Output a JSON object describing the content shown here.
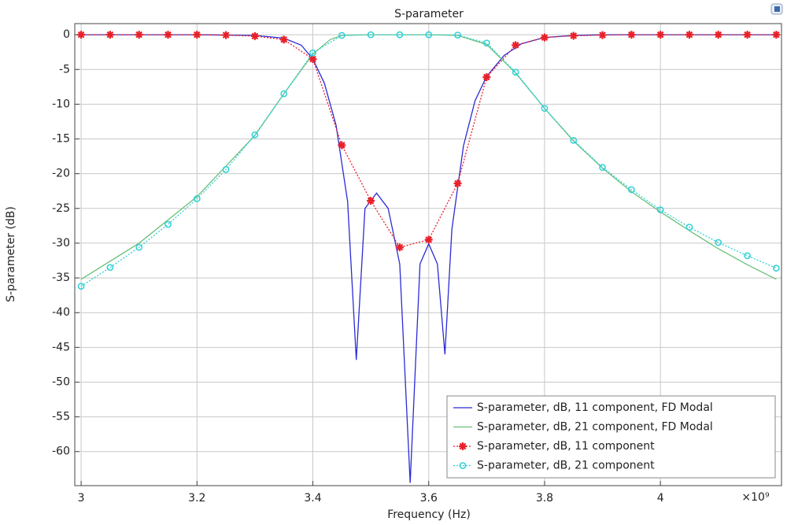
{
  "chart_data": {
    "type": "line",
    "title": "S-parameter",
    "x_label": "Frequency (Hz)",
    "y_label": "S-parameter (dB)",
    "x_multiplier": "×10⁹",
    "xlim": [
      2.989,
      4.209
    ],
    "ylim": [
      -64.9,
      1.6
    ],
    "xticks": [
      3,
      3.2,
      3.4,
      3.6,
      3.8,
      4
    ],
    "yticks": [
      0,
      -5,
      -10,
      -15,
      -20,
      -25,
      -30,
      -35,
      -40,
      -45,
      -50,
      -55,
      -60
    ],
    "grid": true,
    "legend": "lower right",
    "series": [
      {
        "name": "S-parameter, dB, 11 component, FD Modal",
        "color": "#2b2bd6",
        "line_style": "solid",
        "x": [
          3,
          3.1,
          3.2,
          3.3,
          3.35,
          3.38,
          3.4,
          3.42,
          3.44,
          3.46,
          3.475,
          3.49,
          3.51,
          3.53,
          3.55,
          3.568,
          3.585,
          3.6,
          3.615,
          3.628,
          3.64,
          3.66,
          3.68,
          3.7,
          3.73,
          3.76,
          3.8,
          3.85,
          3.9,
          4.2
        ],
        "values": [
          0,
          0,
          0,
          -0.1,
          -0.5,
          -1.5,
          -3.5,
          -7,
          -13,
          -24,
          -46.8,
          -25,
          -22.8,
          -25,
          -33,
          -64.5,
          -33,
          -30.1,
          -33,
          -46,
          -28,
          -16,
          -9.5,
          -6,
          -3,
          -1.3,
          -0.4,
          -0.1,
          0,
          0
        ]
      },
      {
        "name": "S-parameter, dB, 21 component, FD Modal",
        "color": "#6cc07a",
        "line_style": "solid",
        "x": [
          3,
          3.1,
          3.2,
          3.3,
          3.35,
          3.4,
          3.43,
          3.45,
          3.5,
          3.6,
          3.65,
          3.7,
          3.75,
          3.8,
          3.85,
          3.9,
          3.95,
          4.0,
          4.05,
          4.1,
          4.15,
          4.2
        ],
        "values": [
          -35.2,
          -30,
          -23.3,
          -14.5,
          -8.5,
          -2.8,
          -0.7,
          -0.1,
          0,
          0,
          -0.1,
          -1.4,
          -5.5,
          -10.6,
          -15.3,
          -19.2,
          -22.6,
          -25.5,
          -28.2,
          -30.8,
          -33.1,
          -35.2
        ]
      },
      {
        "name": "S-parameter, dB, 11 component",
        "color": "#e8202a",
        "line_style": "dotted",
        "marker": "star",
        "x": [
          3,
          3.05,
          3.1,
          3.15,
          3.2,
          3.25,
          3.3,
          3.35,
          3.4,
          3.45,
          3.5,
          3.55,
          3.6,
          3.65,
          3.7,
          3.75,
          3.8,
          3.85,
          3.9,
          3.95,
          4.0,
          4.05,
          4.1,
          4.15,
          4.2
        ],
        "values": [
          0,
          0,
          0,
          0,
          0,
          -0.05,
          -0.2,
          -0.7,
          -3.5,
          -15.9,
          -23.9,
          -30.6,
          -29.5,
          -21.4,
          -6.1,
          -1.5,
          -0.4,
          -0.15,
          -0.05,
          0,
          0,
          0,
          0,
          0,
          0
        ]
      },
      {
        "name": "S-parameter, dB, 21 component",
        "color": "#2fd0d6",
        "line_style": "dotted",
        "marker": "circle",
        "x": [
          3,
          3.05,
          3.1,
          3.15,
          3.2,
          3.25,
          3.3,
          3.35,
          3.4,
          3.45,
          3.5,
          3.55,
          3.6,
          3.65,
          3.7,
          3.75,
          3.8,
          3.85,
          3.9,
          3.95,
          4.0,
          4.05,
          4.1,
          4.15,
          4.2
        ],
        "values": [
          -36.2,
          -33.5,
          -30.6,
          -27.3,
          -23.6,
          -19.4,
          -14.4,
          -8.5,
          -2.6,
          -0.1,
          0,
          0,
          0,
          -0.05,
          -1.2,
          -5.4,
          -10.6,
          -15.2,
          -19.1,
          -22.3,
          -25.2,
          -27.7,
          -29.9,
          -31.8,
          -33.6
        ]
      }
    ]
  }
}
